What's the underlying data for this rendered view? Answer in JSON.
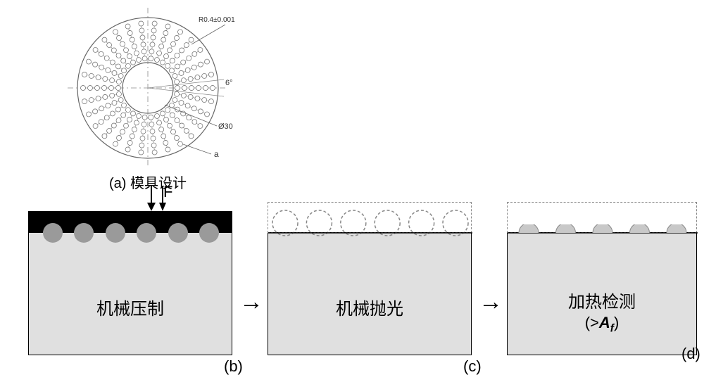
{
  "panel_a": {
    "label": "(a) 模具设计",
    "dim_radius": "R0.4±0.001",
    "dim_angle": "6°",
    "dim_diameter": "Ø30",
    "dim_spacing": "a",
    "outer_radius": 100,
    "inner_radius": 36,
    "ring_radii": [
      48,
      58,
      68,
      78,
      88
    ],
    "dots_per_spoke": 6,
    "dot_radius": 3.5,
    "spoke_count": 30,
    "spoke_inner_r": 42,
    "spoke_outer_r": 92,
    "colors": {
      "stroke": "#666666",
      "fine_stroke": "#888888",
      "dot_fill": "#ffffff",
      "bg": "#ffffff"
    }
  },
  "force": {
    "label": "F"
  },
  "panel_b": {
    "tag": "(b)",
    "label": "机械压制",
    "ball_count": 6,
    "ball_color": "#9a9a9a",
    "substrate_color": "#e0e0e0"
  },
  "panel_c": {
    "tag": "(c)",
    "label": "机械抛光",
    "dash_color": "#888888",
    "circle_count": 6
  },
  "panel_d": {
    "tag": "(d)",
    "label": "加热检测",
    "sub_label_prefix": "(>",
    "sub_label_var": "A",
    "sub_label_sub": "f",
    "sub_label_suffix": ")",
    "bump_count": 5
  },
  "connectors": {
    "arrow": "→"
  }
}
